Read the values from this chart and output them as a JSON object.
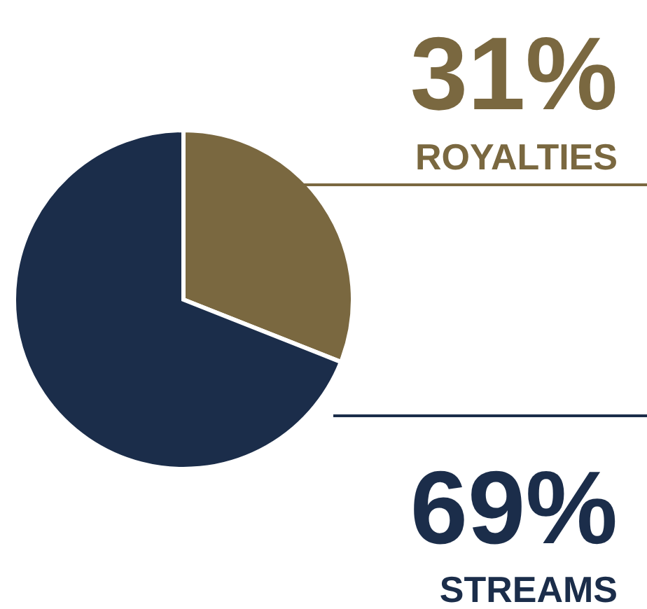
{
  "chart_data": {
    "type": "pie",
    "categories": [
      "ROYALTIES",
      "STREAMS"
    ],
    "values": [
      31,
      69
    ],
    "value_labels": [
      "31%",
      "69%"
    ],
    "colors": [
      "#7a6840",
      "#1b2d4a"
    ]
  }
}
